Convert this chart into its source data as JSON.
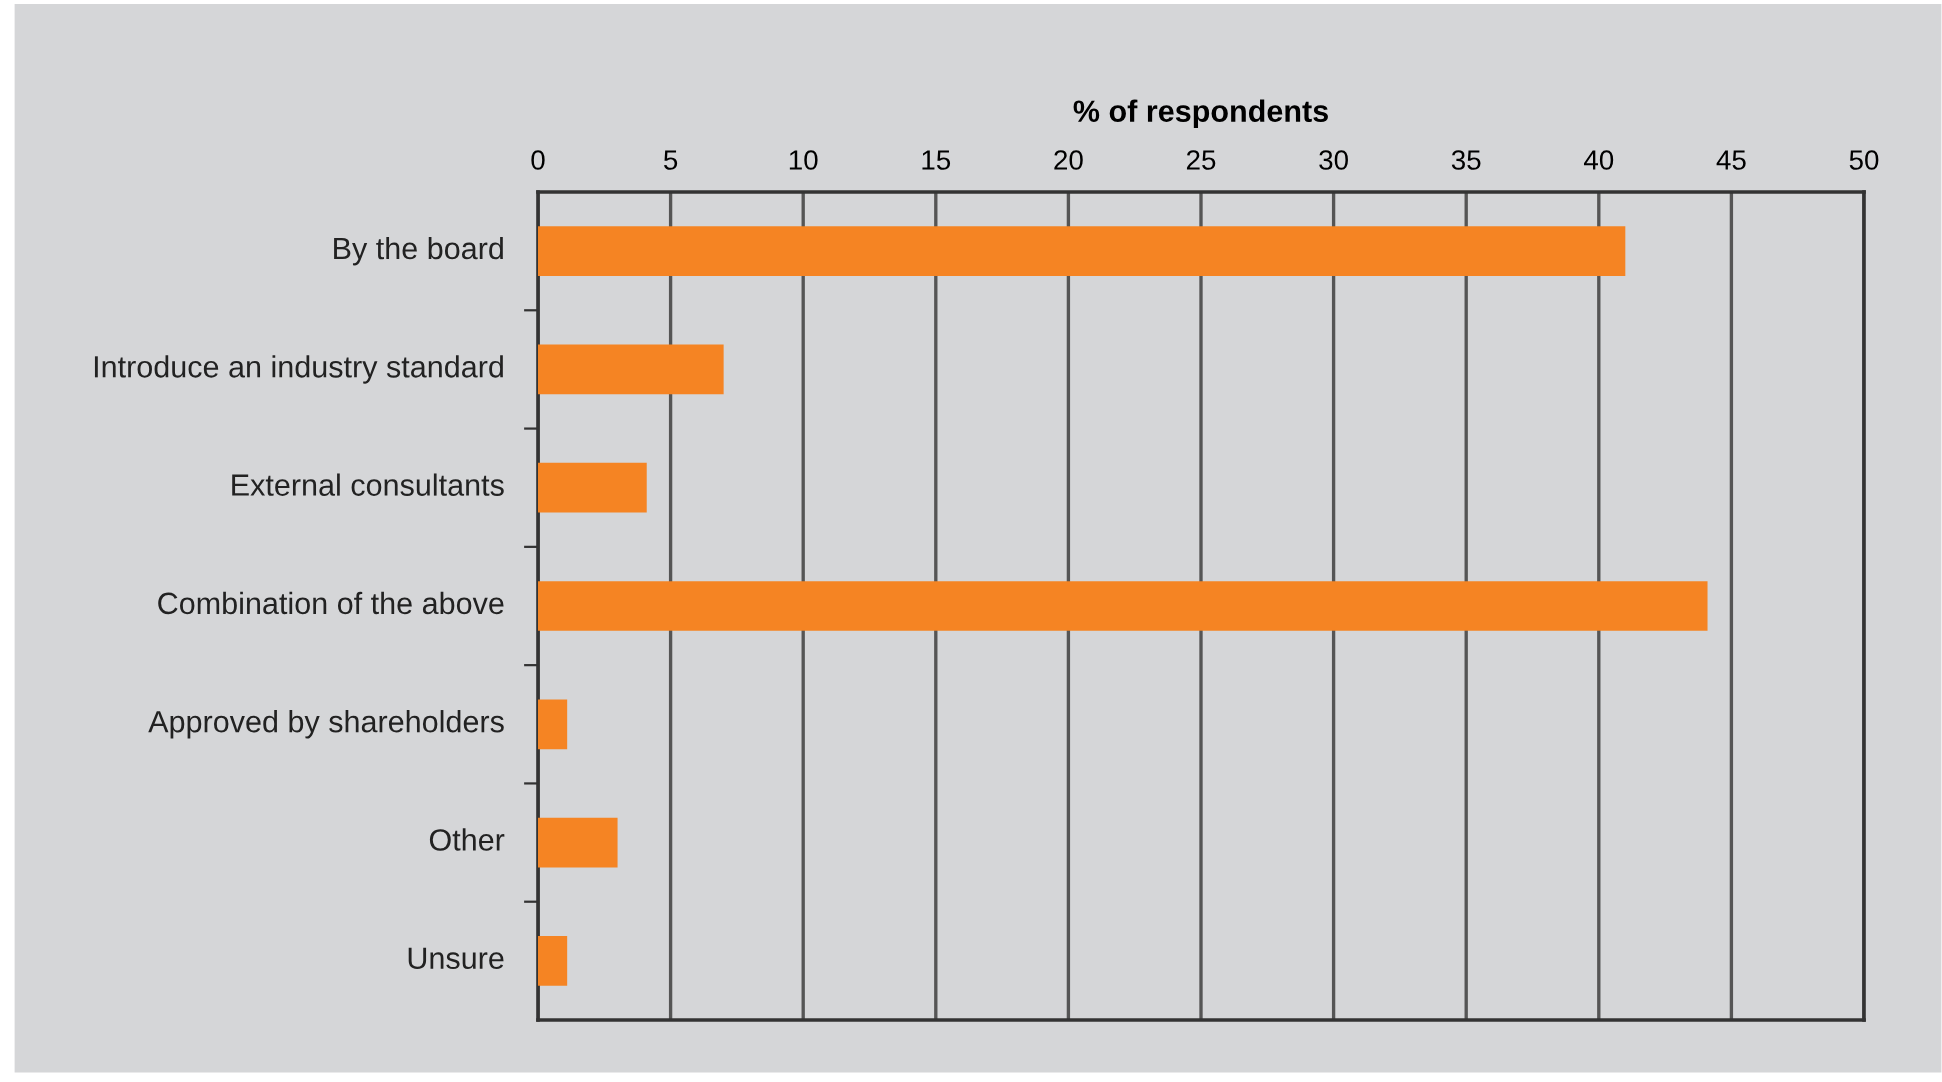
{
  "chart_data": {
    "type": "bar",
    "orientation": "horizontal",
    "xlabel": "% of respondents",
    "categories": [
      "By the board",
      "Introduce an industry standard",
      "External consultants",
      "Combination of the above",
      "Approved by shareholders",
      "Other",
      "Unsure"
    ],
    "values": [
      41,
      7,
      4.1,
      44.1,
      1.1,
      3,
      1.1
    ],
    "color": "#f58423",
    "xlim": [
      0,
      50
    ],
    "xticks": [
      0,
      5,
      10,
      15,
      20,
      25,
      30,
      35,
      40,
      45,
      50
    ],
    "grid": "x",
    "legend": false
  }
}
